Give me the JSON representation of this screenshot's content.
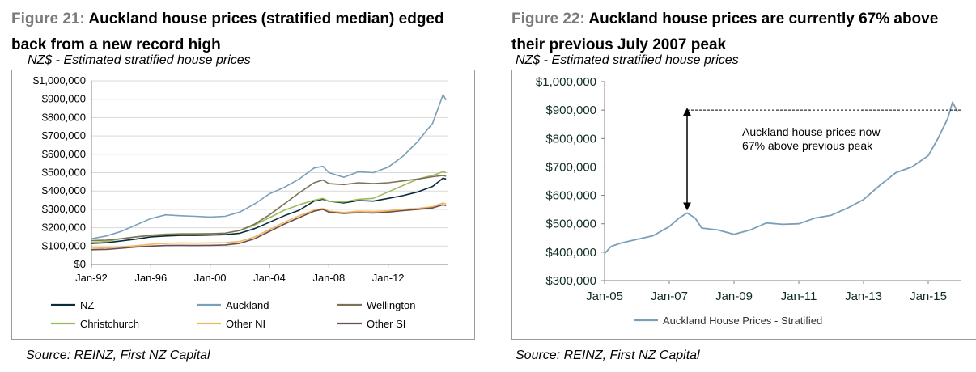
{
  "figure21": {
    "number": "Figure 21:",
    "title": "Auckland house prices (stratified median) edged back from a new record high",
    "subtitle": "NZ$ - Estimated stratified house prices",
    "source": "Source: REINZ, First NZ Capital"
  },
  "figure22": {
    "number": "Figure 22:",
    "title": "Auckland house prices are currently 67% above their previous July 2007 peak",
    "subtitle": "NZ$ - Estimated stratified house prices",
    "source": "Source: REINZ, First NZ Capital",
    "annotation_line1": "Auckland house prices now",
    "annotation_line2": "67% above previous peak"
  },
  "chart_data": [
    {
      "type": "line",
      "title": "Auckland house prices (stratified median) edged back from a new record high",
      "ylabel": "NZ$ - Estimated stratified house prices",
      "ylim": [
        0,
        1000000
      ],
      "xlim": [
        1992.0,
        2016.0
      ],
      "yticks": [
        0,
        100000,
        200000,
        300000,
        400000,
        500000,
        600000,
        700000,
        800000,
        900000,
        1000000
      ],
      "ytick_labels": [
        "$0",
        "$100,000",
        "$200,000",
        "$300,000",
        "$400,000",
        "$500,000",
        "$600,000",
        "$700,000",
        "$800,000",
        "$900,000",
        "$1,000,000"
      ],
      "xticks": [
        1992,
        1996,
        2000,
        2004,
        2008,
        2012
      ],
      "xtick_labels": [
        "Jan-92",
        "Jan-96",
        "Jan-00",
        "Jan-04",
        "Jan-08",
        "Jan-12"
      ],
      "grid": "horizontal",
      "legend": "bottom",
      "x": [
        1992,
        1993,
        1994,
        1995,
        1996,
        1997,
        1998,
        1999,
        2000,
        2001,
        2002,
        2003,
        2004,
        2005,
        2006,
        2007,
        2007.6,
        2008,
        2009,
        2010,
        2011,
        2012,
        2013,
        2014,
        2015,
        2015.7,
        2015.9
      ],
      "series": [
        {
          "name": "NZ",
          "color": "#0b2a3c",
          "values": [
            115000,
            118000,
            128000,
            138000,
            150000,
            155000,
            158000,
            158000,
            160000,
            162000,
            170000,
            195000,
            230000,
            265000,
            295000,
            345000,
            355000,
            345000,
            335000,
            348000,
            345000,
            360000,
            375000,
            395000,
            425000,
            470000,
            465000
          ]
        },
        {
          "name": "Auckland",
          "color": "#7b9fb8",
          "values": [
            140000,
            155000,
            180000,
            215000,
            250000,
            270000,
            265000,
            262000,
            258000,
            262000,
            285000,
            330000,
            385000,
            420000,
            465000,
            525000,
            535000,
            500000,
            475000,
            505000,
            500000,
            530000,
            590000,
            670000,
            770000,
            925000,
            895000
          ]
        },
        {
          "name": "Wellington",
          "color": "#7a7256",
          "values": [
            130000,
            132000,
            140000,
            150000,
            158000,
            162000,
            165000,
            165000,
            167000,
            170000,
            185000,
            220000,
            270000,
            330000,
            390000,
            445000,
            460000,
            440000,
            435000,
            445000,
            440000,
            445000,
            455000,
            465000,
            478000,
            485000,
            480000
          ]
        },
        {
          "name": "Christchurch",
          "color": "#9bbb59",
          "values": [
            120000,
            125000,
            140000,
            150000,
            160000,
            165000,
            168000,
            168000,
            168000,
            170000,
            185000,
            215000,
            255000,
            295000,
            325000,
            350000,
            360000,
            345000,
            340000,
            355000,
            360000,
            395000,
            430000,
            465000,
            485000,
            505000,
            500000
          ]
        },
        {
          "name": "Other NI",
          "color": "#f4b65c",
          "values": [
            88000,
            90000,
            95000,
            102000,
            110000,
            115000,
            117000,
            116000,
            117000,
            118000,
            125000,
            150000,
            190000,
            230000,
            265000,
            295000,
            305000,
            290000,
            283000,
            290000,
            288000,
            292000,
            300000,
            305000,
            315000,
            335000,
            330000
          ]
        },
        {
          "name": "Other SI",
          "color": "#6b4f4f",
          "values": [
            80000,
            82000,
            88000,
            95000,
            100000,
            103000,
            104000,
            103000,
            104000,
            106000,
            115000,
            140000,
            180000,
            220000,
            255000,
            290000,
            300000,
            285000,
            278000,
            282000,
            280000,
            285000,
            293000,
            300000,
            308000,
            325000,
            320000
          ]
        }
      ]
    },
    {
      "type": "line",
      "title": "Auckland house prices are currently 67% above their previous July 2007 peak",
      "ylabel": "NZ$ - Estimated stratified house prices",
      "ylim": [
        300000,
        1000000
      ],
      "xlim": [
        2005.0,
        2016.0
      ],
      "yticks": [
        300000,
        400000,
        500000,
        600000,
        700000,
        800000,
        900000,
        1000000
      ],
      "ytick_labels": [
        "$300,000",
        "$400,000",
        "$500,000",
        "$600,000",
        "$700,000",
        "$800,000",
        "$900,000",
        "$1,000,000"
      ],
      "xticks": [
        2005,
        2007,
        2009,
        2011,
        2013,
        2015
      ],
      "xtick_labels": [
        "Jan-05",
        "Jan-07",
        "Jan-09",
        "Jan-11",
        "Jan-13",
        "Jan-15"
      ],
      "grid": "none",
      "legend": "bottom",
      "reference_line": 900000,
      "series": [
        {
          "name": "Auckland House Prices - Stratified",
          "color": "#7b9fb8",
          "x": [
            2005.0,
            2005.2,
            2005.5,
            2006.0,
            2006.5,
            2007.0,
            2007.3,
            2007.55,
            2007.8,
            2008.0,
            2008.5,
            2009.0,
            2009.5,
            2010.0,
            2010.5,
            2011.0,
            2011.5,
            2012.0,
            2012.5,
            2013.0,
            2013.5,
            2014.0,
            2014.5,
            2015.0,
            2015.3,
            2015.6,
            2015.75,
            2015.9
          ],
          "values": [
            395000,
            420000,
            432000,
            445000,
            458000,
            490000,
            520000,
            538000,
            520000,
            485000,
            478000,
            463000,
            478000,
            503000,
            498000,
            500000,
            520000,
            530000,
            555000,
            585000,
            635000,
            680000,
            700000,
            740000,
            800000,
            870000,
            928000,
            895000
          ]
        }
      ]
    }
  ]
}
